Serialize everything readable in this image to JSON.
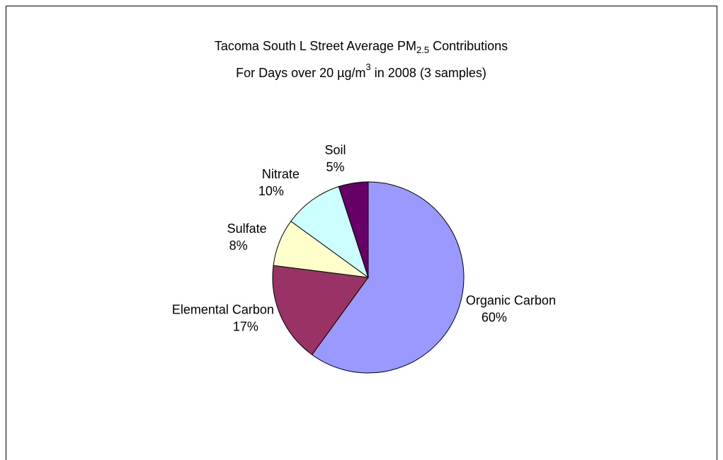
{
  "chart_data": {
    "type": "pie",
    "title": [
      "Tacoma South L Street Average PM",
      "2.5",
      " Contributions"
    ],
    "subtitle": [
      "For Days over 20 µg/m",
      "3",
      " in 2008 (3 samples)"
    ],
    "categories": [
      "Organic Carbon",
      "Elemental Carbon",
      "Sulfate",
      "Nitrate",
      "Soil"
    ],
    "values": [
      60,
      17,
      8,
      10,
      5
    ],
    "value_labels": [
      "60%",
      "17%",
      "8%",
      "10%",
      "5%"
    ],
    "colors": [
      "#9999ff",
      "#993366",
      "#ffffcc",
      "#ccffff",
      "#660066"
    ]
  }
}
